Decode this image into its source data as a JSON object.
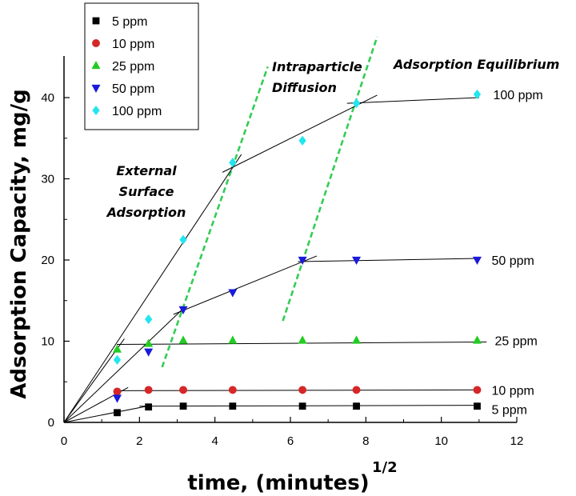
{
  "chart_data": {
    "type": "scatter",
    "xlabel": "time, (minutes)",
    "xlabel_superscript": "1/2",
    "ylabel": "Adsorption Capacity, mg/g",
    "xlim": [
      0,
      12
    ],
    "ylim": [
      0,
      44
    ],
    "xticks": [
      0,
      2,
      4,
      6,
      8,
      10,
      12
    ],
    "yticks": [
      0,
      10,
      20,
      30,
      40
    ],
    "x_tick_labels": [
      "0",
      "2",
      "4",
      "6",
      "8",
      "10",
      "12"
    ],
    "y_tick_labels": [
      "0",
      "10",
      "20",
      "30",
      "40"
    ],
    "grid": false,
    "legend_position": "top-left",
    "series": [
      {
        "name": "5 ppm",
        "marker": "square",
        "color": "#000000",
        "end_label": "5 ppm",
        "x": [
          1.41,
          2.24,
          3.16,
          4.47,
          6.32,
          7.75,
          10.95
        ],
        "y": [
          1.2,
          1.9,
          2.0,
          2.0,
          2.0,
          2.0,
          2.0
        ]
      },
      {
        "name": "10 ppm",
        "marker": "circle",
        "color": "#d62728",
        "end_label": "10 ppm",
        "x": [
          1.41,
          2.24,
          3.16,
          4.47,
          6.32,
          7.75,
          10.95
        ],
        "y": [
          3.8,
          4.0,
          4.0,
          4.0,
          4.0,
          4.0,
          4.0
        ]
      },
      {
        "name": "25 ppm",
        "marker": "triangle-up",
        "color": "#22cc22",
        "end_label": "25 ppm",
        "x": [
          1.41,
          2.24,
          3.16,
          4.47,
          6.32,
          7.75,
          10.95
        ],
        "y": [
          9.0,
          9.7,
          10.1,
          10.1,
          10.1,
          10.1,
          10.1
        ]
      },
      {
        "name": "50 ppm",
        "marker": "triangle-down",
        "color": "#1a1adb",
        "end_label": "50 ppm",
        "x": [
          1.41,
          2.24,
          3.16,
          4.47,
          6.32,
          7.75,
          10.95
        ],
        "y": [
          3.0,
          8.7,
          13.9,
          16.0,
          20.0,
          20.0,
          20.0
        ]
      },
      {
        "name": "100 ppm",
        "marker": "diamond",
        "color": "#22e5f0",
        "end_label": "100 ppm",
        "x": [
          1.41,
          2.24,
          3.16,
          4.47,
          6.32,
          7.75,
          10.95
        ],
        "y": [
          7.7,
          12.7,
          22.5,
          32.0,
          34.7,
          39.3,
          40.4
        ]
      }
    ],
    "fit_lines": [
      {
        "name": "5 ppm stage 1",
        "x": [
          0,
          2.2
        ],
        "y": [
          0,
          2.0
        ]
      },
      {
        "name": "5 ppm stage 2",
        "x": [
          2.0,
          11.0
        ],
        "y": [
          2.0,
          2.1
        ]
      },
      {
        "name": "10 ppm stage 1",
        "x": [
          0,
          1.7
        ],
        "y": [
          0,
          4.3
        ]
      },
      {
        "name": "10 ppm stage 2",
        "x": [
          1.4,
          11.0
        ],
        "y": [
          3.9,
          4.0
        ]
      },
      {
        "name": "25 ppm stage 1",
        "x": [
          0,
          1.6
        ],
        "y": [
          0,
          10.3
        ]
      },
      {
        "name": "25 ppm stage 2",
        "x": [
          1.4,
          11.2
        ],
        "y": [
          9.6,
          9.9
        ]
      },
      {
        "name": "50 ppm stage 1",
        "x": [
          0,
          3.2
        ],
        "y": [
          0,
          14.2
        ]
      },
      {
        "name": "50 ppm stage 2",
        "x": [
          2.9,
          6.7
        ],
        "y": [
          13.3,
          20.5
        ]
      },
      {
        "name": "50 ppm stage 3",
        "x": [
          6.2,
          11.0
        ],
        "y": [
          19.8,
          20.2
        ]
      },
      {
        "name": "100 ppm stage 1",
        "x": [
          0,
          4.7
        ],
        "y": [
          0,
          33.0
        ]
      },
      {
        "name": "100 ppm stage 2",
        "x": [
          4.2,
          8.3
        ],
        "y": [
          30.8,
          40.3
        ]
      },
      {
        "name": "100 ppm stage 3",
        "x": [
          7.5,
          11.0
        ],
        "y": [
          39.3,
          40.0
        ]
      }
    ],
    "boundary_lines": [
      {
        "name": "first stage boundary",
        "x": [
          2.6,
          5.4
        ],
        "y": [
          6.8,
          43.8
        ]
      },
      {
        "name": "second stage boundary",
        "x": [
          5.8,
          8.3
        ],
        "y": [
          12.5,
          47.5
        ]
      }
    ],
    "annotations": [
      {
        "name": "external-surface-adsorption",
        "lines": [
          "External",
          "Surface",
          "Adsorption"
        ]
      },
      {
        "name": "intraparticle-diffusion",
        "lines": [
          "Intraparticle",
          "Diffusion"
        ]
      },
      {
        "name": "adsorption-equilibrium",
        "lines": [
          "Adsorption Equilibrium"
        ]
      }
    ]
  }
}
